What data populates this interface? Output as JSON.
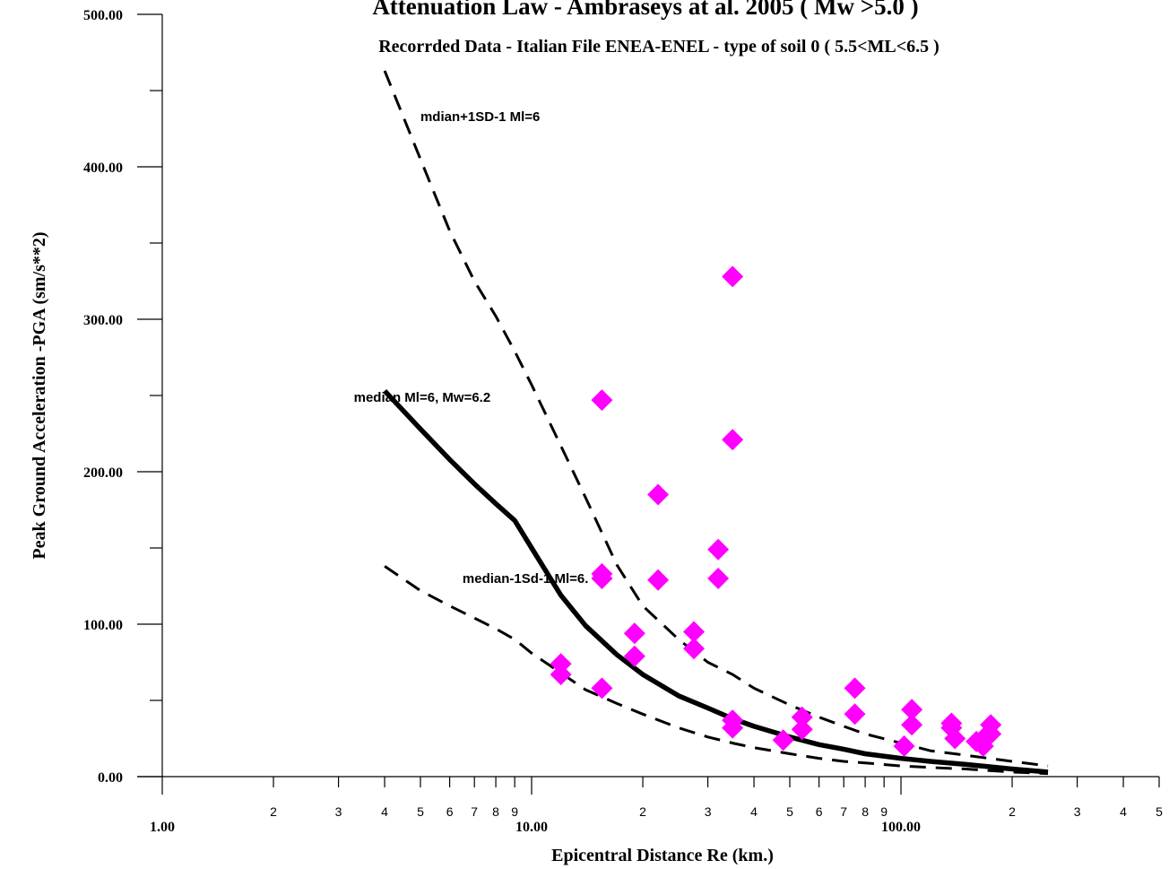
{
  "chart_data": {
    "type": "scatter",
    "title": "Attenuation Law - Ambraseys at al. 2005 ( Mw >5.0 )",
    "subtitle": "Recorrded Data - Italian File ENEA-ENEL - type of soil 0 ( 5.5<ML<6.5 )",
    "xlabel": "Epicentral Distance Re (km.)",
    "ylabel": "Peak Ground Acceleration -PGA (sm/s**2)",
    "x_scale": "log",
    "xlim": [
      1,
      500
    ],
    "ylim": [
      0,
      500
    ],
    "x_major_ticks": [
      {
        "value": 1,
        "label": "1.00"
      },
      {
        "value": 10,
        "label": "10.00"
      },
      {
        "value": 100,
        "label": "100.00"
      }
    ],
    "x_minor_ticks": [
      {
        "value": 2,
        "label": "2"
      },
      {
        "value": 3,
        "label": "3"
      },
      {
        "value": 4,
        "label": "4"
      },
      {
        "value": 5,
        "label": "5"
      },
      {
        "value": 6,
        "label": "6"
      },
      {
        "value": 7,
        "label": "7"
      },
      {
        "value": 8,
        "label": "8"
      },
      {
        "value": 9,
        "label": "9"
      },
      {
        "value": 20,
        "label": "2"
      },
      {
        "value": 30,
        "label": "3"
      },
      {
        "value": 40,
        "label": "4"
      },
      {
        "value": 50,
        "label": "5"
      },
      {
        "value": 60,
        "label": "6"
      },
      {
        "value": 70,
        "label": "7"
      },
      {
        "value": 80,
        "label": "8"
      },
      {
        "value": 90,
        "label": "9"
      },
      {
        "value": 200,
        "label": "2"
      },
      {
        "value": 300,
        "label": "3"
      },
      {
        "value": 400,
        "label": "4"
      },
      {
        "value": 500,
        "label": "5"
      }
    ],
    "y_ticks": [
      {
        "value": 0,
        "label": "0.00"
      },
      {
        "value": 100,
        "label": "100.00"
      },
      {
        "value": 200,
        "label": "200.00"
      },
      {
        "value": 300,
        "label": "300.00"
      },
      {
        "value": 400,
        "label": "400.00"
      },
      {
        "value": 500,
        "label": "500.00"
      }
    ],
    "y_minor_ticks": [
      50,
      150,
      250,
      350,
      450
    ],
    "annotations": [
      {
        "text": "mdian+1SD-1 Ml=6",
        "x": 5.0,
        "y": 430
      },
      {
        "text": "median Ml=6, Mw=6.2",
        "x": 3.3,
        "y": 246
      },
      {
        "text": "median-1Sd-1  Ml=6.",
        "x": 6.5,
        "y": 127
      }
    ],
    "series": [
      {
        "style": "solid",
        "color": "#000000",
        "x": [
          4,
          5,
          6,
          7,
          8,
          9,
          10,
          12,
          14,
          17,
          20,
          25,
          30,
          35,
          40,
          50,
          60,
          70,
          80,
          100,
          120,
          150,
          200,
          250
        ],
        "y": [
          253,
          228,
          208,
          192,
          179,
          168,
          150,
          119,
          99,
          80,
          67,
          53,
          45,
          38,
          33,
          26,
          21,
          18,
          15,
          12,
          10,
          8,
          5,
          3
        ]
      },
      {
        "style": "dashed",
        "color": "#000000",
        "x": [
          4,
          5,
          6,
          7,
          8,
          9,
          10,
          12,
          14,
          17,
          20,
          25,
          30,
          35,
          40,
          50,
          60,
          70,
          80,
          100,
          120,
          150,
          200,
          250
        ],
        "y": [
          463,
          405,
          358,
          325,
          302,
          279,
          257,
          217,
          183,
          139,
          112,
          90,
          75,
          67,
          58,
          47,
          39,
          33,
          28,
          22,
          17,
          14,
          10,
          7
        ]
      },
      {
        "style": "dashed",
        "color": "#000000",
        "x": [
          4,
          5,
          6,
          7,
          8,
          9,
          10,
          12,
          14,
          17,
          20,
          25,
          30,
          35,
          40,
          50,
          60,
          70,
          80,
          100,
          120,
          150,
          200,
          250
        ],
        "y": [
          138,
          122,
          112,
          104,
          97,
          90,
          81,
          68,
          57,
          48,
          41,
          32,
          26,
          22,
          19,
          15,
          12,
          10,
          9,
          7,
          6,
          5,
          3,
          2
        ]
      },
      {
        "style": "markers",
        "marker": "diamond",
        "color": "#ff00ff",
        "x": [
          12,
          12,
          15.5,
          15.5,
          15.5,
          15.5,
          19,
          19,
          22,
          22,
          27.5,
          27.5,
          32,
          32,
          35,
          35,
          35,
          35,
          48,
          54,
          54,
          75,
          75,
          102,
          107,
          107,
          137,
          137,
          140,
          160,
          167,
          167,
          175,
          175
        ],
        "y": [
          74,
          67,
          247,
          133,
          130,
          58,
          94,
          79,
          185,
          129,
          95,
          84,
          149,
          130,
          328,
          221,
          37,
          32,
          24,
          39,
          31,
          58,
          41,
          20,
          44,
          34,
          35,
          32,
          25,
          23,
          25,
          20,
          34,
          28
        ]
      }
    ]
  }
}
